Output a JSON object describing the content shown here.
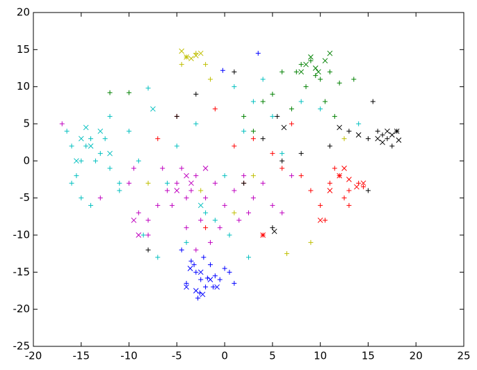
{
  "chart_data": {
    "type": "scatter",
    "xlim": [
      -20,
      25
    ],
    "ylim": [
      -25,
      20
    ],
    "xticks": [
      -20,
      -15,
      -10,
      -5,
      0,
      5,
      10,
      15,
      20,
      25
    ],
    "yticks": [
      -25,
      -20,
      -15,
      -10,
      -5,
      0,
      5,
      10,
      15,
      20
    ],
    "series": [
      {
        "color": "#0000ff",
        "marker": "+",
        "x": [
          -3,
          -2.5,
          -2,
          -1.5,
          -1,
          -3.5,
          -4,
          -2.8,
          -1.2,
          0,
          -0.5,
          -2.2,
          0.5,
          1,
          -3.2,
          -1.8,
          -2.6,
          3.5,
          -0.2,
          -4.5
        ],
        "y": [
          -15,
          -16,
          -17,
          -14,
          -15.5,
          -13.5,
          -16.5,
          -18.5,
          -17,
          -14.5,
          -16,
          -13,
          -15,
          -16.5,
          -14,
          -15.8,
          -17.8,
          14.5,
          12.2,
          -12
        ]
      },
      {
        "color": "#0000ff",
        "marker": "x",
        "x": [
          -4,
          -3,
          -2.3,
          -1.5,
          -2.5,
          -0.8,
          -3.6
        ],
        "y": [
          -17,
          -17.5,
          -18,
          -16,
          -15,
          -17,
          -14.5
        ]
      },
      {
        "color": "#008000",
        "marker": "+",
        "x": [
          7.5,
          8,
          9,
          10,
          11,
          8.5,
          9.5,
          12,
          13.5,
          6,
          5,
          4,
          2,
          -12,
          -10,
          7,
          10.5,
          11.5,
          3
        ],
        "y": [
          12,
          13,
          13.5,
          11,
          12,
          10,
          11.5,
          10.5,
          11,
          12,
          9,
          8,
          6,
          9.2,
          9.2,
          7,
          8,
          6,
          4
        ]
      },
      {
        "color": "#008000",
        "marker": "x",
        "x": [
          8.5,
          9,
          9.5,
          10.5,
          11,
          8,
          9.8
        ],
        "y": [
          13,
          14,
          12.5,
          13.5,
          14.5,
          12,
          12
        ]
      },
      {
        "color": "#ff0000",
        "marker": "+",
        "x": [
          11,
          12,
          13,
          14,
          12.5,
          11.5,
          10,
          9,
          8,
          6,
          5,
          3,
          1,
          -2,
          -5,
          -7,
          14.5,
          13,
          10.5,
          2,
          4,
          -1,
          7
        ],
        "y": [
          -3,
          -2,
          -4,
          -3,
          -5,
          -1,
          -6,
          -4,
          -2,
          -1,
          1,
          3,
          2,
          -9,
          6,
          3,
          -3.5,
          -6,
          -8,
          -3,
          -10,
          7,
          5
        ]
      },
      {
        "color": "#ff0000",
        "marker": "x",
        "x": [
          12,
          13,
          13.8,
          14.5,
          11,
          12.5,
          10,
          4
        ],
        "y": [
          -2,
          -2.5,
          -3.5,
          -3,
          -4,
          -1,
          -8,
          -10
        ]
      },
      {
        "color": "#00bfbf",
        "marker": "+",
        "x": [
          -16,
          -15,
          -14,
          -13,
          -12,
          -16.5,
          -15.5,
          -14.5,
          -13.5,
          -12.5,
          -11,
          -10,
          -9,
          -8,
          -15,
          -14,
          -5,
          -3,
          0,
          1,
          2,
          3,
          4,
          5,
          -1,
          -6,
          -4,
          8,
          10,
          14,
          -2,
          0.5,
          -7,
          -16,
          -12,
          -11,
          6,
          -8.5,
          2.5
        ],
        "y": [
          2,
          0,
          3,
          1,
          -1,
          4,
          -2,
          2,
          0,
          3,
          -3,
          4,
          0,
          9.8,
          -5,
          -6,
          2,
          5,
          -2,
          10,
          4,
          8,
          11,
          6,
          -8,
          -3,
          -11,
          8,
          7,
          5,
          -7,
          -10,
          -13,
          -3,
          6,
          -4,
          1,
          -10,
          -13
        ]
      },
      {
        "color": "#00bfbf",
        "marker": "x",
        "x": [
          -15,
          -14,
          -13,
          -12,
          -15.5,
          -14.5,
          -7.5,
          -2.5
        ],
        "y": [
          3,
          2,
          4,
          1,
          0,
          4.5,
          7,
          -6
        ]
      },
      {
        "color": "#bf00bf",
        "marker": "+",
        "x": [
          -6,
          -5,
          -4,
          -3,
          -7,
          -8,
          -5.5,
          -4.5,
          -3.5,
          -2,
          -1,
          0,
          1,
          2,
          3,
          -6.5,
          -9,
          -8,
          -2.5,
          -1.5,
          4,
          5,
          7,
          -10,
          -4,
          -3,
          1.5,
          -0.5,
          6,
          2.5,
          -13,
          -17,
          -9.5
        ],
        "y": [
          -4,
          -3,
          -5,
          -2,
          -6,
          -8,
          -6,
          -1,
          -4,
          -5,
          -3,
          -6,
          -4,
          -2,
          -5,
          -1,
          -7,
          -10,
          -8,
          -11,
          -3,
          -6,
          -2,
          -3,
          -9,
          -12,
          -8,
          -9,
          -7,
          -7,
          -5,
          5,
          -1
        ]
      },
      {
        "color": "#bf00bf",
        "marker": "x",
        "x": [
          -9.5,
          -9,
          -4,
          -3.5,
          -5,
          -2
        ],
        "y": [
          -8,
          -10,
          -2,
          -3,
          -4,
          -1
        ]
      },
      {
        "color": "#bfbf00",
        "marker": "+",
        "x": [
          -4,
          -3,
          -2,
          -1.5,
          -4.5,
          3,
          9,
          6.5,
          -2.5,
          12.5,
          -8,
          1
        ],
        "y": [
          14,
          14.5,
          13,
          11,
          13,
          -2,
          -11,
          -12.5,
          -4,
          3,
          -3,
          -7
        ]
      },
      {
        "color": "#bfbf00",
        "marker": "x",
        "x": [
          -4.5,
          -4,
          -3,
          -2.5,
          -3.5
        ],
        "y": [
          14.8,
          14,
          14.2,
          14.5,
          13.8
        ]
      },
      {
        "color": "#000000",
        "marker": "+",
        "x": [
          15,
          16,
          17,
          18,
          15.5,
          16.5,
          17.5,
          15,
          13,
          11,
          4,
          2,
          -3,
          -5,
          5,
          5.5,
          -8,
          1,
          6,
          8
        ],
        "y": [
          3,
          4,
          3,
          4,
          8,
          3.5,
          2,
          -4,
          4,
          2,
          3,
          -3,
          9,
          6,
          -9,
          6,
          -12,
          12,
          0,
          1
        ]
      },
      {
        "color": "#000000",
        "marker": "x",
        "x": [
          16,
          16.5,
          17,
          17.5,
          18,
          18.2,
          12,
          14,
          5.2,
          6.2
        ],
        "y": [
          3,
          2.5,
          4,
          3.5,
          4,
          2.8,
          4.5,
          3.5,
          -9.5,
          4.5
        ]
      }
    ]
  }
}
